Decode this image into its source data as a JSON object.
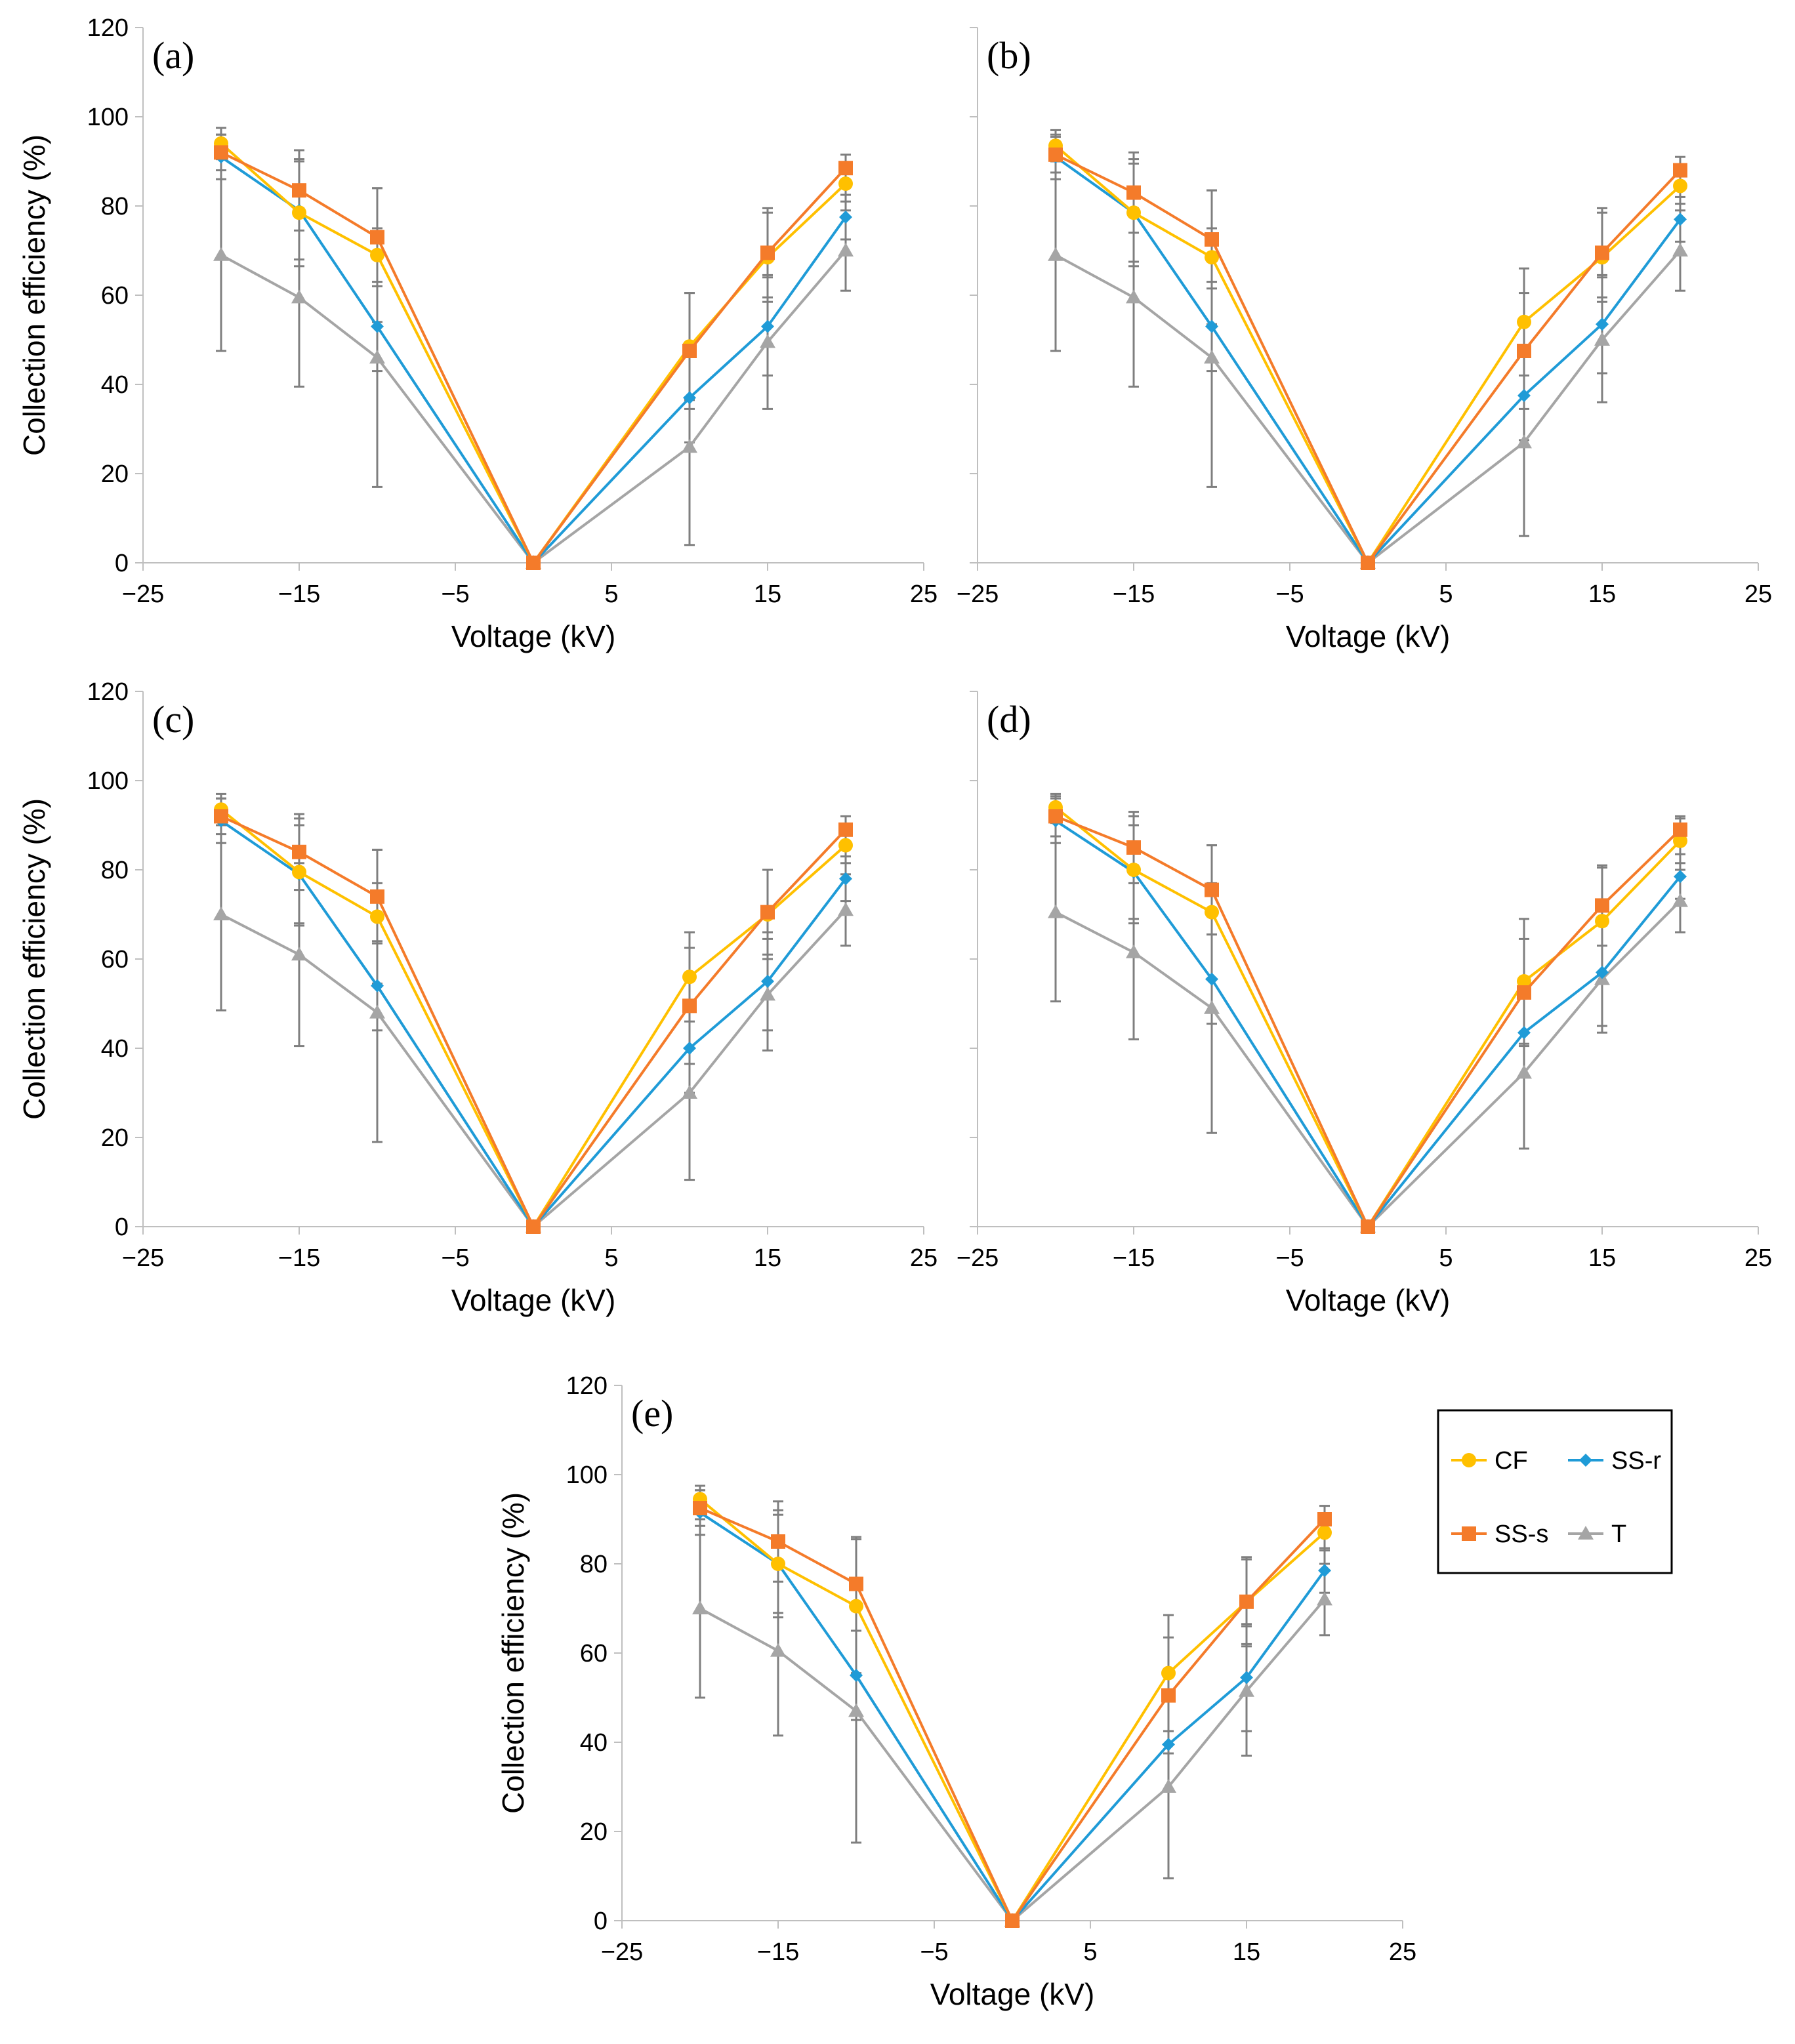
{
  "colors": {
    "CF": "#ffc000",
    "SS-r": "#1f9bd7",
    "SS-s": "#f47b2a",
    "T": "#a5a5a5",
    "error": "#7f7f7f",
    "axis": "#bfbfbf"
  },
  "legend": {
    "items": [
      {
        "key": "CF",
        "label": "CF",
        "marker": "circle"
      },
      {
        "key": "SS-r",
        "label": "SS-r",
        "marker": "diamond"
      },
      {
        "key": "SS-s",
        "label": "SS-s",
        "marker": "square"
      },
      {
        "key": "T",
        "label": "T",
        "marker": "triangle"
      }
    ]
  },
  "chart_data": [
    {
      "type": "line",
      "panel": "(a)",
      "xlabel": "Voltage (kV)",
      "ylabel": "Collection efficiency (%)",
      "xlim": [
        -25,
        25
      ],
      "ylim": [
        0,
        120
      ],
      "xticks": [
        -25,
        -15,
        -5,
        5,
        15,
        25
      ],
      "xtick_labels": [
        "−25",
        "−15",
        "−5",
        "5",
        "15",
        "25"
      ],
      "yticks": [
        0,
        20,
        40,
        60,
        80,
        100,
        120
      ],
      "ytick_labels": [
        "0",
        "20",
        "40",
        "60",
        "80",
        "100",
        "120"
      ],
      "x": [
        -20,
        -15,
        -10,
        0,
        10,
        15,
        20
      ],
      "series": [
        {
          "name": "CF",
          "values": [
            94,
            78.5,
            69,
            0,
            48.5,
            68.5,
            85
          ],
          "err": [
            3.5,
            12,
            15,
            0,
            12,
            10,
            4
          ]
        },
        {
          "name": "SS-r",
          "values": [
            91,
            79,
            53,
            0,
            37,
            53,
            77.5
          ],
          "err": [
            5,
            11,
            10,
            0,
            10,
            11,
            5
          ]
        },
        {
          "name": "SS-s",
          "values": [
            92,
            83.5,
            73,
            0,
            47.5,
            69.5,
            88.5
          ],
          "err": [
            4,
            9,
            11,
            0,
            13,
            10,
            3
          ]
        },
        {
          "name": "T",
          "values": [
            69,
            59.5,
            46,
            0,
            26,
            49.5,
            70
          ],
          "err": [
            21.5,
            20,
            29,
            0,
            22,
            15,
            9
          ]
        }
      ]
    },
    {
      "type": "line",
      "panel": "(b)",
      "xlabel": "Voltage (kV)",
      "ylabel": "",
      "xlim": [
        -25,
        25
      ],
      "ylim": [
        0,
        120
      ],
      "xticks": [
        -25,
        -15,
        -5,
        5,
        15,
        25
      ],
      "xtick_labels": [
        "−25",
        "−15",
        "−5",
        "5",
        "15",
        "25"
      ],
      "yticks": [
        0,
        20,
        40,
        60,
        80,
        100,
        120
      ],
      "ytick_labels": [],
      "x": [
        -20,
        -15,
        -10,
        0,
        10,
        15,
        20
      ],
      "series": [
        {
          "name": "CF",
          "values": [
            93.5,
            78.5,
            68.5,
            0,
            54,
            68.5,
            84.5
          ],
          "err": [
            3.5,
            12,
            15,
            0,
            12,
            10,
            4
          ]
        },
        {
          "name": "SS-r",
          "values": [
            91,
            78.5,
            53,
            0,
            37.5,
            53.5,
            77
          ],
          "err": [
            5,
            11,
            10,
            0,
            10,
            11,
            5
          ]
        },
        {
          "name": "SS-s",
          "values": [
            91.5,
            83,
            72.5,
            0,
            47.5,
            69.5,
            88
          ],
          "err": [
            4,
            9,
            11,
            0,
            13,
            10,
            3
          ]
        },
        {
          "name": "T",
          "values": [
            69,
            59.5,
            46,
            0,
            27,
            50,
            70
          ],
          "err": [
            21.5,
            20,
            29,
            0,
            21,
            14,
            9
          ]
        }
      ]
    },
    {
      "type": "line",
      "panel": "(c)",
      "xlabel": "Voltage (kV)",
      "ylabel": "Collection efficiency (%)",
      "xlim": [
        -25,
        25
      ],
      "ylim": [
        0,
        120
      ],
      "xticks": [
        -25,
        -15,
        -5,
        5,
        15,
        25
      ],
      "xtick_labels": [
        "−25",
        "−15",
        "−5",
        "5",
        "15",
        "25"
      ],
      "yticks": [
        0,
        20,
        40,
        60,
        80,
        100,
        120
      ],
      "ytick_labels": [
        "0",
        "20",
        "40",
        "60",
        "80",
        "100",
        "120"
      ],
      "x": [
        -20,
        -15,
        -10,
        0,
        10,
        15,
        20
      ],
      "series": [
        {
          "name": "CF",
          "values": [
            93.5,
            79.5,
            69.5,
            0,
            56,
            70,
            85.5
          ],
          "err": [
            3.5,
            12,
            15,
            0,
            10,
            10,
            4
          ]
        },
        {
          "name": "SS-r",
          "values": [
            91,
            79,
            54,
            0,
            40,
            55,
            78
          ],
          "err": [
            5,
            11,
            10,
            0,
            10,
            11,
            5
          ]
        },
        {
          "name": "SS-s",
          "values": [
            92,
            84,
            74,
            0,
            49.5,
            70.5,
            89
          ],
          "err": [
            4,
            8.5,
            10.5,
            0,
            13,
            9.5,
            3
          ]
        },
        {
          "name": "T",
          "values": [
            70,
            61,
            48,
            0,
            30,
            52,
            71
          ],
          "err": [
            21.5,
            20.5,
            29,
            0,
            19.5,
            12.5,
            8
          ]
        }
      ]
    },
    {
      "type": "line",
      "panel": "(d)",
      "xlabel": "Voltage (kV)",
      "ylabel": "",
      "xlim": [
        -25,
        25
      ],
      "ylim": [
        0,
        120
      ],
      "xticks": [
        -25,
        -15,
        -5,
        5,
        15,
        25
      ],
      "xtick_labels": [
        "−25",
        "−15",
        "−5",
        "5",
        "15",
        "25"
      ],
      "yticks": [
        0,
        20,
        40,
        60,
        80,
        100,
        120
      ],
      "ytick_labels": [],
      "x": [
        -20,
        -15,
        -10,
        0,
        10,
        15,
        20
      ],
      "series": [
        {
          "name": "CF",
          "values": [
            94,
            80,
            70.5,
            0,
            55,
            68.5,
            86.5
          ],
          "err": [
            3,
            12,
            15,
            0,
            14,
            12,
            5
          ]
        },
        {
          "name": "SS-r",
          "values": [
            91,
            79.5,
            55.5,
            0,
            43.5,
            57,
            78.5
          ],
          "err": [
            5,
            10.5,
            10,
            0,
            10,
            12,
            5
          ]
        },
        {
          "name": "SS-s",
          "values": [
            92,
            85,
            75.5,
            0,
            52.5,
            72,
            89
          ],
          "err": [
            4.5,
            8,
            10,
            0,
            12,
            9,
            3
          ]
        },
        {
          "name": "T",
          "values": [
            70.5,
            61.5,
            49,
            0,
            34.5,
            55.5,
            73
          ],
          "err": [
            20,
            19.5,
            28,
            0,
            17,
            12,
            7
          ]
        }
      ]
    },
    {
      "type": "line",
      "panel": "(e)",
      "xlabel": "Voltage (kV)",
      "ylabel": "Collection efficiency (%)",
      "xlim": [
        -25,
        25
      ],
      "ylim": [
        0,
        120
      ],
      "xticks": [
        -25,
        -15,
        -5,
        5,
        15,
        25
      ],
      "xtick_labels": [
        "−25",
        "−15",
        "−5",
        "5",
        "15",
        "25"
      ],
      "yticks": [
        0,
        20,
        40,
        60,
        80,
        100,
        120
      ],
      "ytick_labels": [
        "0",
        "20",
        "40",
        "60",
        "80",
        "100",
        "120"
      ],
      "x": [
        -20,
        -15,
        -10,
        0,
        10,
        15,
        20
      ],
      "series": [
        {
          "name": "CF",
          "values": [
            94.5,
            80,
            70.5,
            0,
            55.5,
            71.5,
            87
          ],
          "err": [
            3,
            12,
            15,
            0,
            13,
            10,
            4
          ]
        },
        {
          "name": "SS-r",
          "values": [
            91.5,
            80,
            55,
            0,
            39.5,
            54.5,
            78.5
          ],
          "err": [
            5,
            11,
            10,
            0,
            10,
            12,
            5
          ]
        },
        {
          "name": "SS-s",
          "values": [
            92.5,
            85,
            75.5,
            0,
            50.5,
            71.5,
            90
          ],
          "err": [
            4,
            9,
            10.5,
            0,
            13,
            9.5,
            3
          ]
        },
        {
          "name": "T",
          "values": [
            70,
            60.5,
            47,
            0,
            30,
            51.5,
            72
          ],
          "err": [
            20,
            19,
            29.5,
            0,
            20.5,
            14.5,
            8
          ]
        }
      ]
    }
  ]
}
